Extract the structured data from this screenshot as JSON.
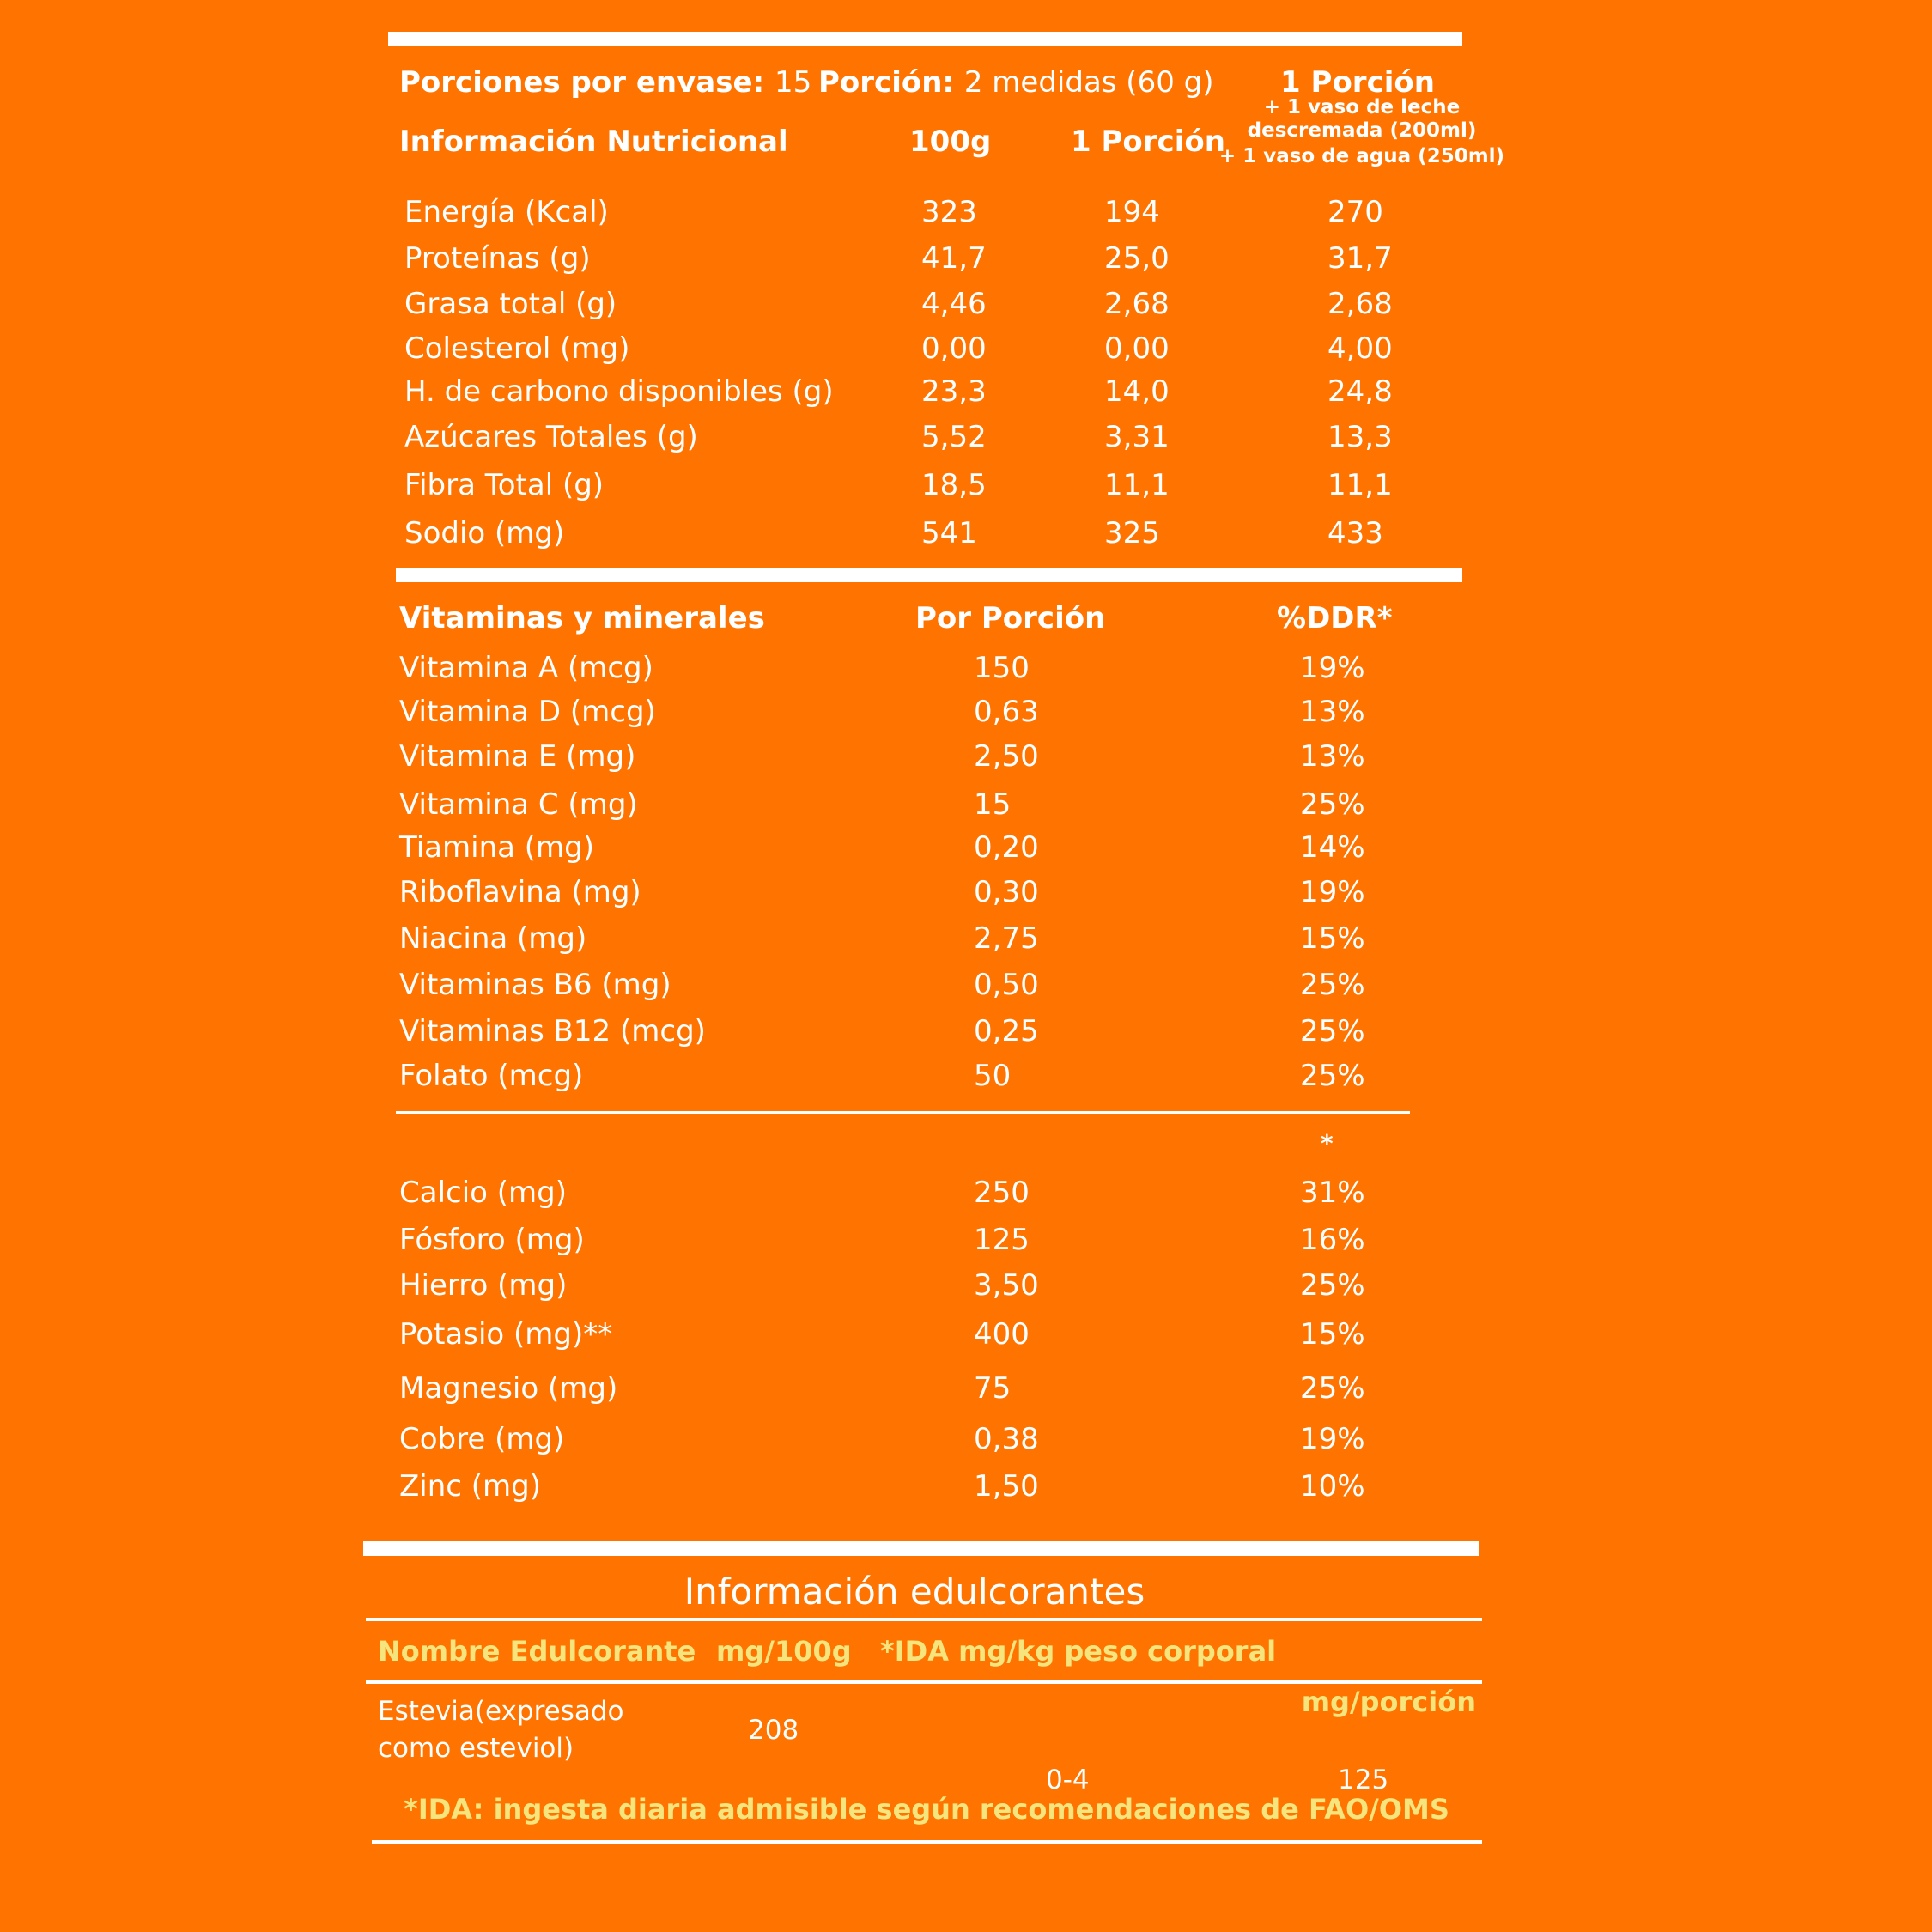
{
  "colors": {
    "background": "#FF7300",
    "text": "#FFFFFF",
    "highlight": "#F6E57C"
  },
  "header": {
    "servings_label": "Porciones por envase:",
    "servings_value": "15",
    "portion_label": "Porción:",
    "portion_value": "2 medidas (60 g)",
    "col3_title": "1 Porción",
    "col3_sub": [
      "+ 1 vaso de leche",
      "descremada (200ml)",
      "+ 1 vaso de agua (250ml)"
    ],
    "section_title": "Información Nutricional",
    "col1": "100g",
    "col2": "1 Porción"
  },
  "nutrients": [
    {
      "name": "Energía (Kcal)",
      "per100g": "323",
      "portion": "194",
      "with_milk": "270"
    },
    {
      "name": "Proteínas (g)",
      "per100g": "41,7",
      "portion": "25,0",
      "with_milk": "31,7"
    },
    {
      "name": "Grasa total (g)",
      "per100g": "4,46",
      "portion": "2,68",
      "with_milk": "2,68"
    },
    {
      "name": "Colesterol (mg)",
      "per100g": "0,00",
      "portion": "0,00",
      "with_milk": "4,00"
    },
    {
      "name": "H. de carbono disponibles (g)",
      "per100g": "23,3",
      "portion": "14,0",
      "with_milk": "24,8"
    },
    {
      "name": "Azúcares Totales (g)",
      "per100g": "5,52",
      "portion": "3,31",
      "with_milk": "13,3"
    },
    {
      "name": "Fibra Total (g)",
      "per100g": "18,5",
      "portion": "11,1",
      "with_milk": "11,1"
    },
    {
      "name": "Sodio (mg)",
      "per100g": "541",
      "portion": "325",
      "with_milk": "433"
    }
  ],
  "vitamins_header": {
    "title": "Vitaminas y minerales",
    "col1": "Por Porción",
    "col2": "%DDR*"
  },
  "vitamins": [
    {
      "name": "Vitamina A (mcg)",
      "portion": "150",
      "ddr": "19%"
    },
    {
      "name": "Vitamina D (mcg)",
      "portion": "0,63",
      "ddr": "13%"
    },
    {
      "name": "Vitamina E (mg)",
      "portion": "2,50",
      "ddr": "13%"
    },
    {
      "name": "Vitamina C (mg)",
      "portion": "15",
      "ddr": "25%"
    },
    {
      "name": "Tiamina (mg)",
      "portion": "0,20",
      "ddr": "14%"
    },
    {
      "name": "Riboflavina (mg)",
      "portion": "0,30",
      "ddr": "19%"
    },
    {
      "name": "Niacina (mg)",
      "portion": "2,75",
      "ddr": "15%"
    },
    {
      "name": "Vitaminas B6 (mg)",
      "portion": "0,50",
      "ddr": "25%"
    },
    {
      "name": "Vitaminas B12 (mcg)",
      "portion": "0,25",
      "ddr": "25%"
    },
    {
      "name": "Folato (mcg)",
      "portion": "50",
      "ddr": "25%"
    }
  ],
  "minerals_marker": "*",
  "minerals": [
    {
      "name": "Calcio (mg)",
      "portion": "250",
      "ddr": "31%"
    },
    {
      "name": "Fósforo (mg)",
      "portion": "125",
      "ddr": "16%"
    },
    {
      "name": "Hierro (mg)",
      "portion": "3,50",
      "ddr": "25%"
    },
    {
      "name": "Potasio (mg)**",
      "portion": "400",
      "ddr": "15%"
    },
    {
      "name": "Magnesio (mg)",
      "portion": "75",
      "ddr": "25%"
    },
    {
      "name": "Cobre (mg)",
      "portion": "0,38",
      "ddr": "19%"
    },
    {
      "name": "Zinc (mg)",
      "portion": "1,50",
      "ddr": "10%"
    }
  ],
  "sweeteners": {
    "title": "Información edulcorantes",
    "col_name": "Nombre Edulcorante",
    "col_mg100": "mg/100g",
    "col_ida": "*IDA mg/kg peso corporal",
    "col_portion": "mg/porción",
    "name_line1": "Estevia(expresado",
    "name_line2": "como esteviol)",
    "mg100": "208",
    "ida": "0-4",
    "portion": "125",
    "footnote": "*IDA: ingesta diaria admisible según recomendaciones de FAO/OMS"
  }
}
